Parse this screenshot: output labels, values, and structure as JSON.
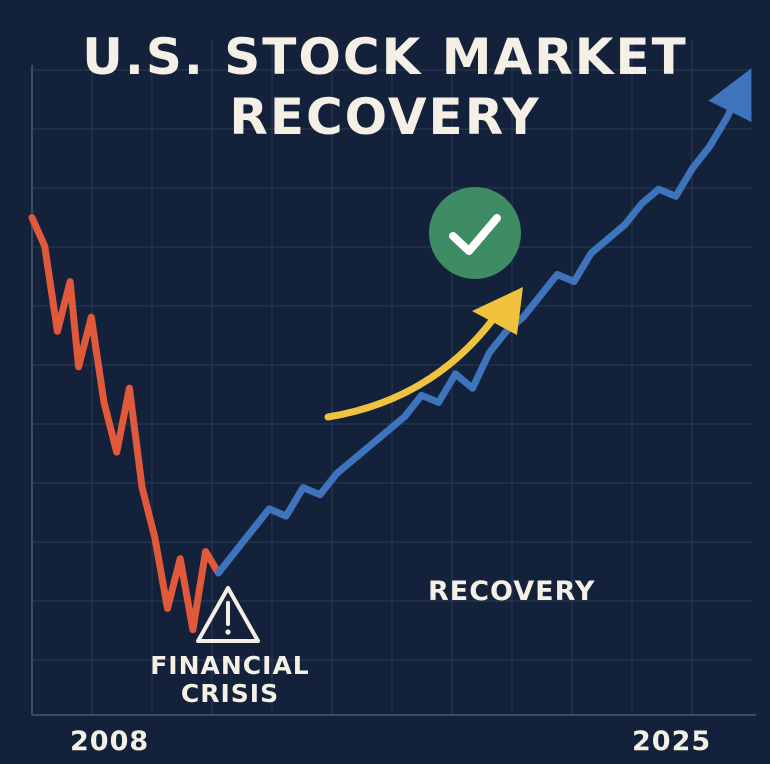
{
  "chart_data": {
    "type": "line",
    "title": "U.S. STOCK MARKET",
    "subtitle": "RECOVERY",
    "x_start_label": "2008",
    "x_end_label": "2025",
    "xlim": [
      2008,
      2025
    ],
    "annotations": {
      "crisis_label_line1": "FINANCIAL",
      "crisis_label_line2": "CRISIS",
      "recovery_label": "RECOVERY"
    },
    "grid": true,
    "series": [
      {
        "color": "#e0593a",
        "x": [
          2008.0,
          2008.3,
          2008.6,
          2008.9,
          2009.1,
          2009.4,
          2009.7,
          2010.0,
          2010.3,
          2010.6,
          2010.9,
          2011.2,
          2011.5,
          2011.8,
          2012.1,
          2012.4
        ],
        "y": [
          100,
          96,
          84,
          91,
          79,
          86,
          74,
          67,
          76,
          62,
          55,
          45,
          52,
          42,
          53,
          50
        ]
      },
      {
        "color": "#3e73bd",
        "x": [
          2012.4,
          2012.8,
          2013.2,
          2013.6,
          2014.0,
          2014.4,
          2014.8,
          2015.2,
          2015.6,
          2016.0,
          2016.4,
          2016.8,
          2017.2,
          2017.6,
          2018.0,
          2018.4,
          2018.8,
          2019.2,
          2019.6,
          2020.0,
          2020.4,
          2020.8,
          2021.2,
          2021.6,
          2022.0,
          2022.4,
          2022.8,
          2023.2,
          2023.6,
          2024.0,
          2024.4,
          2024.9
        ],
        "y": [
          50,
          53,
          56,
          59,
          58,
          62,
          61,
          64,
          66,
          68,
          70,
          72,
          75,
          74,
          78,
          76,
          81,
          84,
          86,
          89,
          92,
          91,
          95,
          97,
          99,
          102,
          104,
          103,
          107,
          110,
          114,
          120
        ]
      }
    ]
  },
  "colors": {
    "background": "#14213a",
    "grid": "#2b3a55",
    "text": "#f5f0e6",
    "decline": "#e0593a",
    "recovery": "#3e73bd",
    "accent_arrow": "#f0c23e",
    "check_badge": "#3e8c63"
  },
  "icons": {
    "check": "check-circle-icon",
    "warning": "warning-triangle-icon",
    "trend": "trend-up-arrow-icon"
  }
}
